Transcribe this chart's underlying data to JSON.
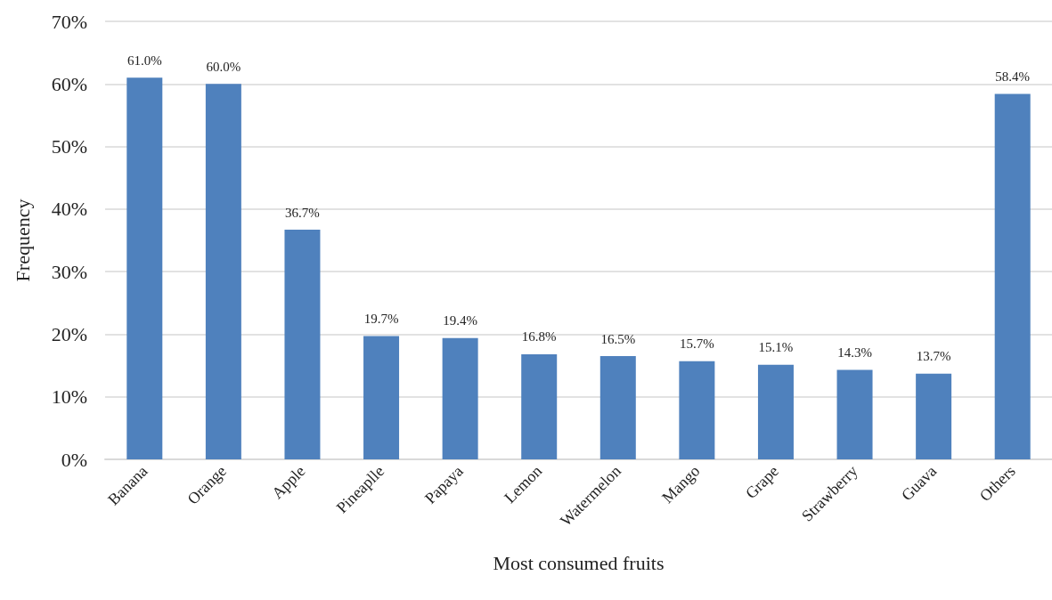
{
  "chart_data": {
    "type": "bar",
    "xlabel": "Most consumed fruits",
    "ylabel": "Frequency",
    "categories": [
      "Banana",
      "Orange",
      "Apple",
      "Pineaplle",
      "Papaya",
      "Lemon",
      "Watermelon",
      "Mango",
      "Grape",
      "Strawberry",
      "Guava",
      "Others"
    ],
    "values": [
      61.0,
      60.0,
      36.7,
      19.7,
      19.4,
      16.8,
      16.5,
      15.7,
      15.1,
      14.3,
      13.7,
      58.4
    ],
    "value_labels": [
      "61.0%",
      "60.0%",
      "36.7%",
      "19.7%",
      "19.4%",
      "16.8%",
      "16.5%",
      "15.7%",
      "15.1%",
      "14.3%",
      "13.7%",
      "58.4%"
    ],
    "color": "#4f81bd",
    "ylim": [
      0,
      70
    ],
    "yticks": [
      {
        "value": 0,
        "label": "0%"
      },
      {
        "value": 10,
        "label": "10%"
      },
      {
        "value": 20,
        "label": "20%"
      },
      {
        "value": 30,
        "label": "30%"
      },
      {
        "value": 40,
        "label": "40%"
      },
      {
        "value": 50,
        "label": "50%"
      },
      {
        "value": 60,
        "label": "60%"
      },
      {
        "value": 70,
        "label": "70%"
      }
    ],
    "grid": "y"
  }
}
